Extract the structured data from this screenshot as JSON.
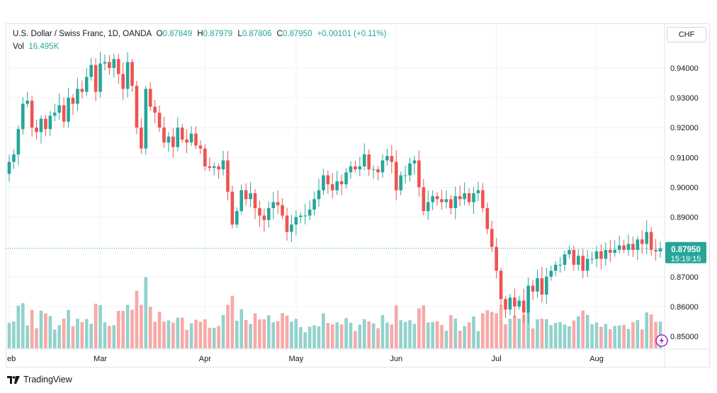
{
  "legend": {
    "symbol": "U.S. Dollar / Swiss Franc, 1D, OANDA",
    "open_label": "O",
    "open": "0.87849",
    "high_label": "H",
    "high": "0.87979",
    "low_label": "L",
    "low": "0.87806",
    "close_label": "C",
    "close": "0.87950",
    "change": "+0.00101 (+0.11%)",
    "vol_label": "Vol",
    "vol": "16.495K"
  },
  "currency_button": "CHF",
  "price_tag": {
    "price": "0.87950",
    "countdown": "15:19:15"
  },
  "brand": "TradingView",
  "colors": {
    "up": "#26a69a",
    "down": "#ef5350",
    "up_vol": "#92d2cc",
    "down_vol": "#f7a9a7",
    "grid": "#f0f3fa",
    "tag": "#26a69a"
  },
  "icons": {
    "logo": "tradingview-logo-icon",
    "alert": "lightning-alert-icon"
  },
  "chart_data": {
    "type": "candlestick",
    "y_ticks": [
      0.94,
      0.93,
      0.92,
      0.91,
      0.9,
      0.89,
      0.87,
      0.86,
      0.85
    ],
    "y_tick_labels": [
      "0.94000",
      "0.93000",
      "0.92000",
      "0.91000",
      "0.90000",
      "0.89000",
      "0.87000",
      "0.86000",
      "0.85000"
    ],
    "ylim": [
      0.8478,
      0.9456
    ],
    "x_labels": [
      {
        "label": "eb",
        "index": 0
      },
      {
        "label": "Mar",
        "index": 20
      },
      {
        "label": "Apr",
        "index": 43
      },
      {
        "label": "May",
        "index": 63
      },
      {
        "label": "Jun",
        "index": 85
      },
      {
        "label": "Jul",
        "index": 107
      },
      {
        "label": "Aug",
        "index": 129
      }
    ],
    "last_price": 0.8795,
    "grid": true,
    "volume_range_max": 1.0,
    "closes": [
      0.9085,
      0.911,
      0.9195,
      0.928,
      0.929,
      0.92,
      0.9185,
      0.923,
      0.9195,
      0.924,
      0.925,
      0.9275,
      0.922,
      0.93,
      0.928,
      0.933,
      0.932,
      0.937,
      0.941,
      0.932,
      0.9415,
      0.942,
      0.94,
      0.943,
      0.938,
      0.933,
      0.942,
      0.934,
      0.92,
      0.913,
      0.933,
      0.927,
      0.925,
      0.92,
      0.915,
      0.917,
      0.9135,
      0.92,
      0.916,
      0.915,
      0.918,
      0.914,
      0.913,
      0.907,
      0.9065,
      0.907,
      0.906,
      0.909,
      0.8985,
      0.8875,
      0.892,
      0.899,
      0.896,
      0.898,
      0.893,
      0.8905,
      0.889,
      0.893,
      0.895,
      0.894,
      0.8905,
      0.885,
      0.8875,
      0.89,
      0.8905,
      0.8905,
      0.8925,
      0.896,
      0.899,
      0.904,
      0.901,
      0.899,
      0.902,
      0.901,
      0.905,
      0.907,
      0.906,
      0.907,
      0.911,
      0.906,
      0.906,
      0.905,
      0.909,
      0.9105,
      0.9085,
      0.899,
      0.904,
      0.904,
      0.908,
      0.909,
      0.9,
      0.892,
      0.895,
      0.897,
      0.896,
      0.895,
      0.896,
      0.893,
      0.897,
      0.896,
      0.898,
      0.895,
      0.898,
      0.899,
      0.893,
      0.886,
      0.88,
      0.872,
      0.8625,
      0.859,
      0.863,
      0.86,
      0.862,
      0.858,
      0.867,
      0.865,
      0.8695,
      0.864,
      0.87,
      0.872,
      0.874,
      0.874,
      0.8775,
      0.879,
      0.874,
      0.877,
      0.872,
      0.876,
      0.876,
      0.8785,
      0.876,
      0.879,
      0.878,
      0.879,
      0.8805,
      0.879,
      0.881,
      0.879,
      0.8825,
      0.881,
      0.885,
      0.879,
      0.8785,
      0.8795
    ]
  }
}
